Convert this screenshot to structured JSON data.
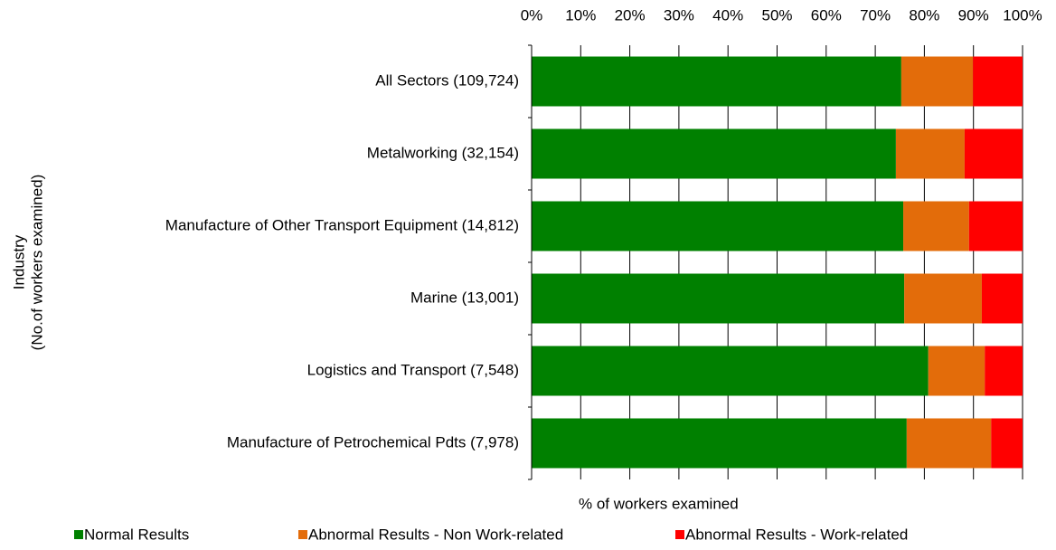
{
  "chart_data": {
    "type": "stacked_barh",
    "xlabel": "% of workers  examined",
    "ylabel": [
      "Industry",
      "(No.of workers  examined)"
    ],
    "categories": [
      "All Sectors (109,724)",
      "Metalworking (32,154)",
      "Manufacture of Other Transport Equipment (14,812)",
      "Marine (13,001)",
      "Logistics and Transport (7,548)",
      "Manufacture of Petrochemical Pdts (7,978)"
    ],
    "series": [
      {
        "name": "Normal Results",
        "color": "#008000",
        "values": [
          75.3,
          74.2,
          75.7,
          75.9,
          80.8,
          76.4
        ]
      },
      {
        "name": "Abnormal Results - Non Work-related",
        "color": "#e36c0a",
        "values": [
          14.6,
          14.0,
          13.4,
          15.8,
          11.5,
          17.2
        ]
      },
      {
        "name": "Abnormal Results - Work-related",
        "color": "#ff0000",
        "values": [
          10.1,
          11.8,
          10.9,
          8.3,
          7.7,
          6.4
        ]
      }
    ],
    "xlim": [
      0,
      100
    ],
    "xticks": [
      {
        "value": 0,
        "label": "0%"
      },
      {
        "value": 10,
        "label": "10%"
      },
      {
        "value": 20,
        "label": "20%"
      },
      {
        "value": 30,
        "label": "30%"
      },
      {
        "value": 40,
        "label": "40%"
      },
      {
        "value": 50,
        "label": "50%"
      },
      {
        "value": 60,
        "label": "60%"
      },
      {
        "value": 70,
        "label": "70%"
      },
      {
        "value": 80,
        "label": "80%"
      },
      {
        "value": 90,
        "label": "90%"
      },
      {
        "value": 100,
        "label": "100%"
      }
    ],
    "grid": true,
    "legend": "bottom"
  }
}
